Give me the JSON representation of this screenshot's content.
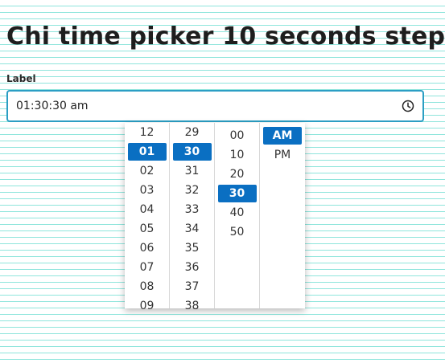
{
  "page": {
    "title": "Chi time picker 10 seconds step"
  },
  "field": {
    "label": "Label",
    "value": "01:30:30 am",
    "icon": "clock-icon"
  },
  "picker": {
    "hours": [
      "12",
      "01",
      "02",
      "03",
      "04",
      "05",
      "06",
      "07",
      "08",
      "09"
    ],
    "hours_selected": "01",
    "minutes": [
      "29",
      "30",
      "31",
      "32",
      "33",
      "34",
      "35",
      "36",
      "37",
      "38"
    ],
    "minutes_selected": "30",
    "seconds": [
      "00",
      "10",
      "20",
      "30",
      "40",
      "50"
    ],
    "seconds_selected": "30",
    "periods": [
      "AM",
      "PM"
    ],
    "period_selected": "AM"
  },
  "colors": {
    "accent": "#0a6fc2",
    "input_border": "#2b9ec4",
    "grid_lines": "#8fe5dc"
  }
}
